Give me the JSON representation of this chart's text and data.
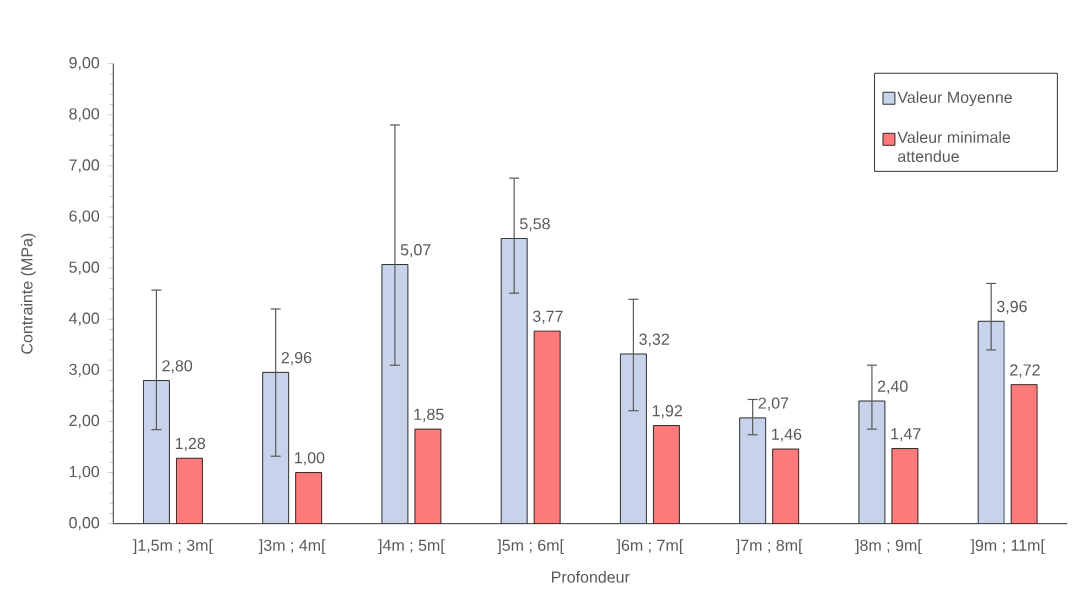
{
  "chart_data": {
    "type": "bar",
    "xlabel": "Profondeur",
    "ylabel": "Contrainte (MPa)",
    "categories": [
      "]1,5m ; 3m[",
      "]3m ; 4m[",
      "]4m ; 5m[",
      "]5m ; 6m[",
      "]6m ; 7m[",
      "]7m ; 8m[",
      "]8m ; 9m[",
      "]9m ; 11m["
    ],
    "series": [
      {
        "name": "Valeur Moyenne",
        "color": "#c6d3ea",
        "values": [
          2.8,
          2.96,
          5.07,
          5.58,
          3.32,
          2.07,
          2.4,
          3.96
        ],
        "value_labels": [
          "2,80",
          "2,96",
          "5,07",
          "5,58",
          "3,32",
          "2,07",
          "2,40",
          "3,96"
        ],
        "errors": [
          [
            1.84,
            4.57
          ],
          [
            1.32,
            4.2
          ],
          [
            3.1,
            7.8
          ],
          [
            4.51,
            6.76
          ],
          [
            2.21,
            4.39
          ],
          [
            1.74,
            2.43
          ],
          [
            1.85,
            3.1
          ],
          [
            3.4,
            4.7
          ]
        ]
      },
      {
        "name": "Valeur minimale attendue",
        "color": "#ff7a7a",
        "values": [
          1.28,
          1.0,
          1.85,
          3.77,
          1.92,
          1.46,
          1.47,
          2.72
        ],
        "value_labels": [
          "1,28",
          "1,00",
          "1,85",
          "3,77",
          "1,92",
          "1,46",
          "1,47",
          "2,72"
        ]
      }
    ],
    "ylim": [
      0,
      9
    ],
    "yticks": [
      {
        "value": 0,
        "label": "0,00"
      },
      {
        "value": 1,
        "label": "1,00"
      },
      {
        "value": 2,
        "label": "2,00"
      },
      {
        "value": 3,
        "label": "3,00"
      },
      {
        "value": 4,
        "label": "4,00"
      },
      {
        "value": 5,
        "label": "5,00"
      },
      {
        "value": 6,
        "label": "6,00"
      },
      {
        "value": 7,
        "label": "7,00"
      },
      {
        "value": 8,
        "label": "8,00"
      },
      {
        "value": 9,
        "label": "9,00"
      }
    ],
    "grid": false,
    "legend": "top right"
  }
}
